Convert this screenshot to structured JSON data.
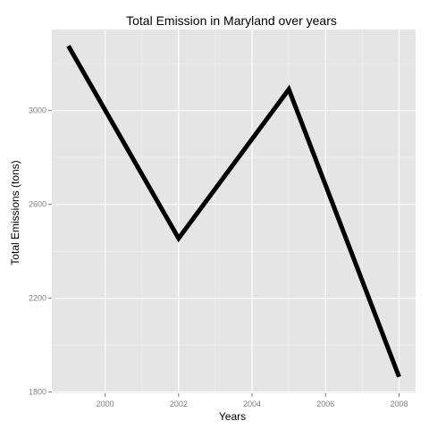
{
  "chart_data": {
    "type": "line",
    "title": "Total Emission in Maryland over years",
    "xlabel": "Years",
    "ylabel": "Total Emissions (tons)",
    "x": [
      1999,
      2002,
      2005,
      2008
    ],
    "series": [
      {
        "values": [
          3275,
          2455,
          3090,
          1865
        ]
      }
    ],
    "x_ticks": [
      2000,
      2002,
      2004,
      2006,
      2008
    ],
    "y_ticks": [
      1800,
      2200,
      2600,
      3000
    ],
    "xlim": [
      1998.55,
      2008.45
    ],
    "ylim": [
      1795,
      3345
    ],
    "grid": true,
    "panel_background": "#e5e5e5",
    "grid_color": "#ffffff",
    "line_color": "#000000"
  }
}
